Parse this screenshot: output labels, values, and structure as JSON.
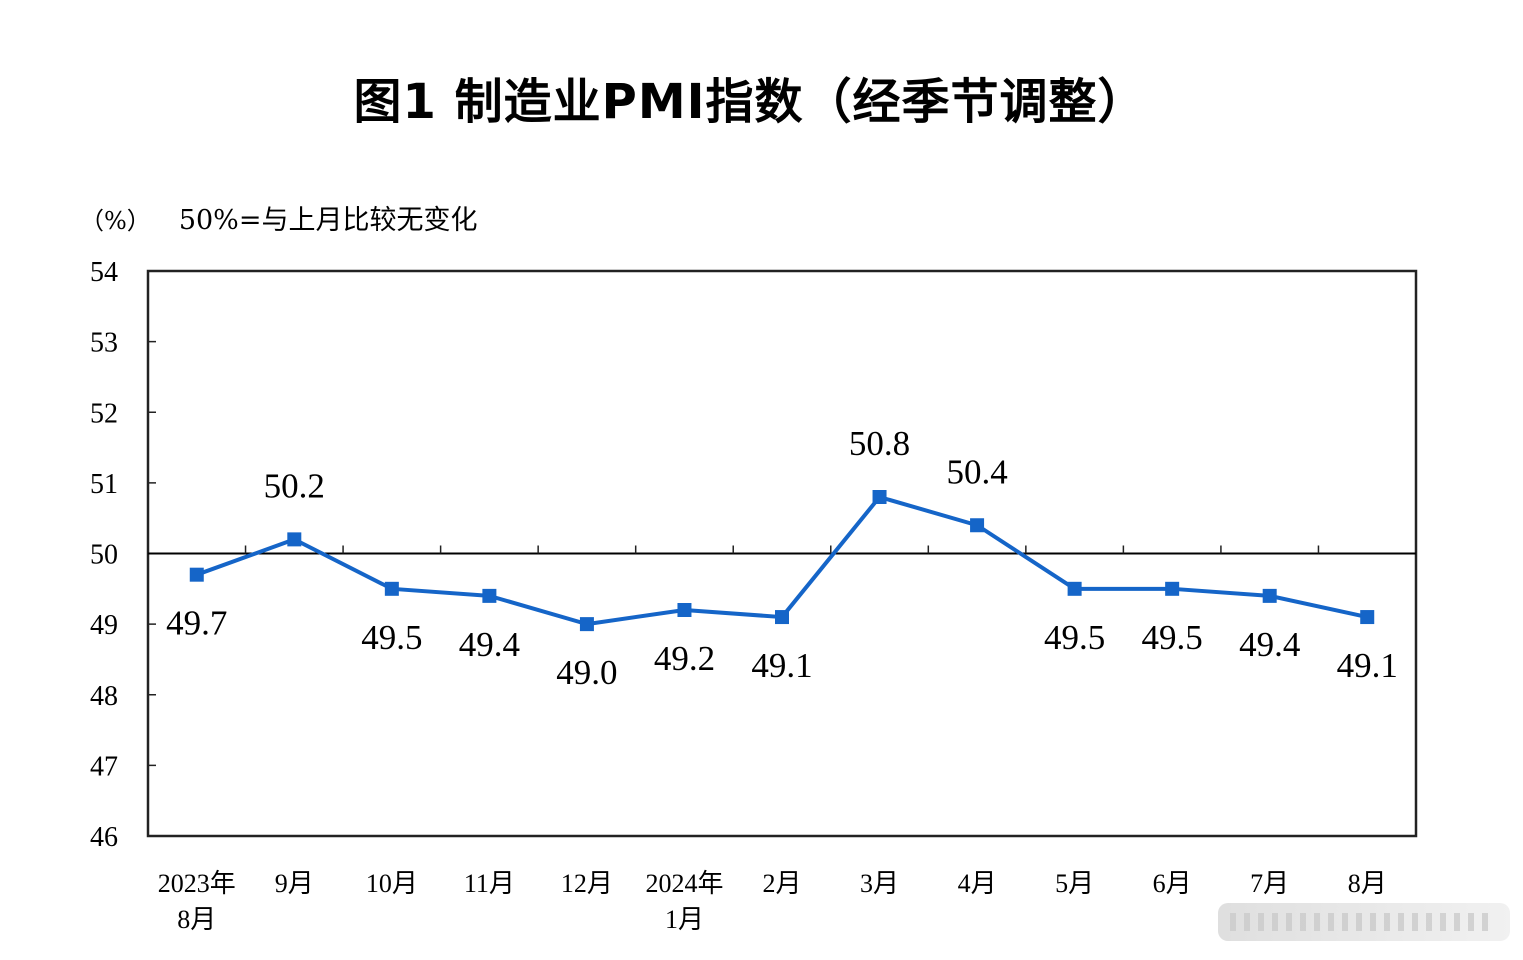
{
  "title": "图1  制造业PMI指数（经季节调整）",
  "unit_label": "（%）",
  "note": "50%=与上月比较无变化",
  "colors": {
    "series": "#1565c8",
    "axis": "#000000",
    "reference_line": "#000000"
  },
  "chart_data": {
    "type": "line",
    "title": "图1  制造业PMI指数（经季节调整）",
    "ylabel": "（%）",
    "note": "50%=与上月比较无变化",
    "ylim": [
      46,
      54
    ],
    "yticks": [
      "54",
      "53",
      "52",
      "51",
      "50",
      "49",
      "48",
      "47",
      "46"
    ],
    "reference_line": 50,
    "grid": false,
    "legend": "none",
    "categories": [
      [
        "2023年",
        "8月"
      ],
      [
        "9月"
      ],
      [
        "10月"
      ],
      [
        "11月"
      ],
      [
        "12月"
      ],
      [
        "2024年",
        "1月"
      ],
      [
        "2月"
      ],
      [
        "3月"
      ],
      [
        "4月"
      ],
      [
        "5月"
      ],
      [
        "6月"
      ],
      [
        "7月"
      ],
      [
        "8月"
      ]
    ],
    "series": [
      {
        "values": [
          49.7,
          50.2,
          49.5,
          49.4,
          49.0,
          49.2,
          49.1,
          50.8,
          50.4,
          49.5,
          49.5,
          49.4,
          49.1
        ],
        "labels": [
          "49.7",
          "50.2",
          "49.5",
          "49.4",
          "49.0",
          "49.2",
          "49.1",
          "50.8",
          "50.4",
          "49.5",
          "49.5",
          "49.4",
          "49.1"
        ],
        "label_position": [
          "below",
          "above",
          "below",
          "below",
          "below",
          "below",
          "below",
          "above",
          "above",
          "below",
          "below",
          "below",
          "below"
        ]
      }
    ]
  }
}
